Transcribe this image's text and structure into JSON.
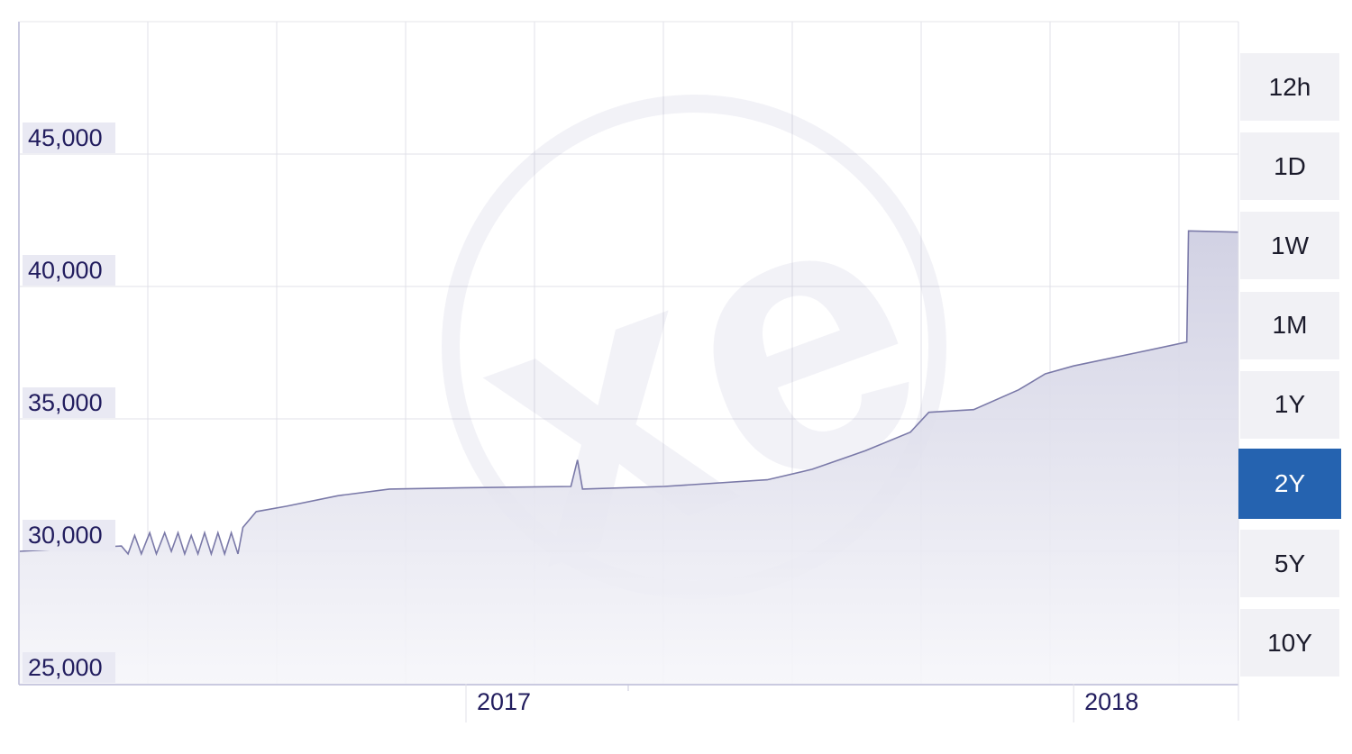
{
  "watermark": "xe",
  "range_buttons": [
    {
      "label": "12h",
      "active": false
    },
    {
      "label": "1D",
      "active": false
    },
    {
      "label": "1W",
      "active": false
    },
    {
      "label": "1M",
      "active": false
    },
    {
      "label": "1Y",
      "active": false
    },
    {
      "label": "2Y",
      "active": true
    },
    {
      "label": "5Y",
      "active": false
    },
    {
      "label": "10Y",
      "active": false
    }
  ],
  "colors": {
    "line": "#7a79a8",
    "fill": "#d6d6e6",
    "active_button": "#2563b0",
    "label_text": "#221d5e"
  },
  "chart_data": {
    "type": "area",
    "title": "",
    "xlabel": "",
    "ylabel": "",
    "x_ticks": [
      "2017",
      "2018"
    ],
    "y_ticks": [
      "25,000",
      "30,000",
      "35,000",
      "40,000",
      "45,000"
    ],
    "y_tick_values": [
      25000,
      30000,
      35000,
      40000,
      45000
    ],
    "ylim": [
      25000,
      50000
    ],
    "xlim": [
      "2016-04-08",
      "2018-04-10"
    ],
    "grid": true,
    "legend": "none",
    "points": [
      [
        "2016-04-08",
        30000
      ],
      [
        "2016-06-08",
        30200
      ],
      [
        "2016-06-12",
        29900
      ],
      [
        "2016-06-16",
        30600
      ],
      [
        "2016-06-20",
        29900
      ],
      [
        "2016-06-25",
        30700
      ],
      [
        "2016-06-29",
        29900
      ],
      [
        "2016-07-04",
        30700
      ],
      [
        "2016-07-08",
        30000
      ],
      [
        "2016-07-12",
        30700
      ],
      [
        "2016-07-16",
        29900
      ],
      [
        "2016-07-20",
        30600
      ],
      [
        "2016-07-24",
        29900
      ],
      [
        "2016-07-28",
        30700
      ],
      [
        "2016-08-01",
        29900
      ],
      [
        "2016-08-05",
        30700
      ],
      [
        "2016-08-09",
        29900
      ],
      [
        "2016-08-13",
        30700
      ],
      [
        "2016-08-17",
        29900
      ],
      [
        "2016-08-20",
        30900
      ],
      [
        "2016-08-28",
        31500
      ],
      [
        "2016-09-15",
        31700
      ],
      [
        "2016-10-16",
        32100
      ],
      [
        "2016-11-16",
        32350
      ],
      [
        "2017-01-01",
        32400
      ],
      [
        "2017-03-05",
        32450
      ],
      [
        "2017-03-09",
        33450
      ],
      [
        "2017-03-12",
        32350
      ],
      [
        "2017-04-30",
        32450
      ],
      [
        "2017-07-01",
        32700
      ],
      [
        "2017-07-28",
        33100
      ],
      [
        "2017-08-29",
        33800
      ],
      [
        "2017-09-25",
        34500
      ],
      [
        "2017-10-06",
        35250
      ],
      [
        "2017-11-02",
        35350
      ],
      [
        "2017-11-29",
        36100
      ],
      [
        "2017-12-15",
        36700
      ],
      [
        "2018-01-01",
        37000
      ],
      [
        "2018-02-08",
        37500
      ],
      [
        "2018-03-10",
        37900
      ],
      [
        "2018-03-11",
        42100
      ],
      [
        "2018-04-10",
        42050
      ]
    ]
  }
}
